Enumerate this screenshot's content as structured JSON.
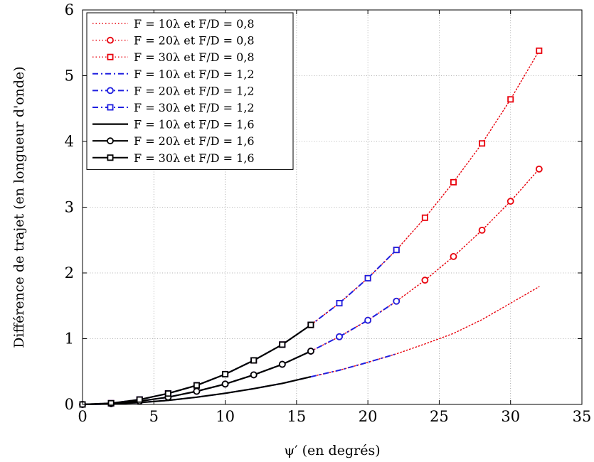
{
  "chart_data": {
    "type": "line",
    "xlabel": "ψ′ (en degrés)",
    "ylabel": "Différence de trajet (en longueur d'onde)",
    "xlim": [
      0,
      35
    ],
    "ylim": [
      0,
      6
    ],
    "xticks": [
      0,
      5,
      10,
      15,
      20,
      25,
      30,
      35
    ],
    "yticks": [
      0,
      1,
      2,
      3,
      4,
      5,
      6
    ],
    "grid": true,
    "legend_position": "top-left",
    "series": [
      {
        "name": "F = 10λ et F/D = 0,8",
        "color": "#e8000b",
        "linestyle": "dotted",
        "marker": "none",
        "x": [
          0,
          2,
          4,
          6,
          8,
          10,
          12,
          14,
          16,
          18,
          20,
          22,
          24,
          26,
          28,
          30,
          32
        ],
        "y": [
          0,
          0.007,
          0.028,
          0.062,
          0.11,
          0.17,
          0.24,
          0.32,
          0.42,
          0.52,
          0.64,
          0.77,
          0.92,
          1.08,
          1.29,
          1.54,
          1.79
        ]
      },
      {
        "name": "F = 20λ et F/D = 0,8",
        "color": "#e8000b",
        "linestyle": "dotted",
        "marker": "circle",
        "x": [
          0,
          2,
          4,
          6,
          8,
          10,
          12,
          14,
          16,
          18,
          20,
          22,
          24,
          26,
          28,
          30,
          32
        ],
        "y": [
          0,
          0.012,
          0.05,
          0.11,
          0.2,
          0.31,
          0.45,
          0.61,
          0.81,
          1.03,
          1.28,
          1.57,
          1.89,
          2.25,
          2.65,
          3.09,
          3.58
        ]
      },
      {
        "name": "F = 30λ et F/D = 0,8",
        "color": "#e8000b",
        "linestyle": "dotted",
        "marker": "square",
        "x": [
          0,
          2,
          4,
          6,
          8,
          10,
          12,
          14,
          16,
          18,
          20,
          22,
          24,
          26,
          28,
          30,
          32
        ],
        "y": [
          0,
          0.018,
          0.074,
          0.166,
          0.29,
          0.46,
          0.67,
          0.91,
          1.21,
          1.54,
          1.92,
          2.35,
          2.84,
          3.38,
          3.97,
          4.64,
          5.38
        ]
      },
      {
        "name": "F = 10λ et F/D = 1,2",
        "color": "#1f1fe0",
        "linestyle": "dashdot",
        "marker": "none",
        "x": [
          0,
          2,
          4,
          6,
          8,
          10,
          12,
          14,
          16,
          18,
          20,
          22
        ],
        "y": [
          0,
          0.007,
          0.028,
          0.062,
          0.11,
          0.17,
          0.24,
          0.32,
          0.42,
          0.52,
          0.64,
          0.77
        ]
      },
      {
        "name": "F = 20λ et F/D = 1,2",
        "color": "#1f1fe0",
        "linestyle": "dashdot",
        "marker": "circle",
        "x": [
          0,
          2,
          4,
          6,
          8,
          10,
          12,
          14,
          16,
          18,
          20,
          22
        ],
        "y": [
          0,
          0.012,
          0.05,
          0.11,
          0.2,
          0.31,
          0.45,
          0.61,
          0.81,
          1.03,
          1.28,
          1.57
        ]
      },
      {
        "name": "F = 30λ et F/D = 1,2",
        "color": "#1f1fe0",
        "linestyle": "dashdot",
        "marker": "square",
        "x": [
          0,
          2,
          4,
          6,
          8,
          10,
          12,
          14,
          16,
          18,
          20,
          22
        ],
        "y": [
          0,
          0.018,
          0.074,
          0.166,
          0.29,
          0.46,
          0.67,
          0.91,
          1.21,
          1.54,
          1.92,
          2.35
        ]
      },
      {
        "name": "F = 10λ et F/D = 1,6",
        "color": "#000000",
        "linestyle": "solid",
        "marker": "none",
        "x": [
          0,
          2,
          4,
          6,
          8,
          10,
          12,
          14,
          16
        ],
        "y": [
          0,
          0.007,
          0.028,
          0.062,
          0.11,
          0.17,
          0.24,
          0.32,
          0.42
        ]
      },
      {
        "name": "F = 20λ et F/D = 1,6",
        "color": "#000000",
        "linestyle": "solid",
        "marker": "circle",
        "x": [
          0,
          2,
          4,
          6,
          8,
          10,
          12,
          14,
          16
        ],
        "y": [
          0,
          0.012,
          0.05,
          0.11,
          0.2,
          0.31,
          0.45,
          0.61,
          0.81
        ]
      },
      {
        "name": "F = 30λ et F/D = 1,6",
        "color": "#000000",
        "linestyle": "solid",
        "marker": "square",
        "x": [
          0,
          2,
          4,
          6,
          8,
          10,
          12,
          14,
          16
        ],
        "y": [
          0,
          0.018,
          0.074,
          0.166,
          0.29,
          0.46,
          0.67,
          0.91,
          1.21
        ]
      }
    ]
  }
}
